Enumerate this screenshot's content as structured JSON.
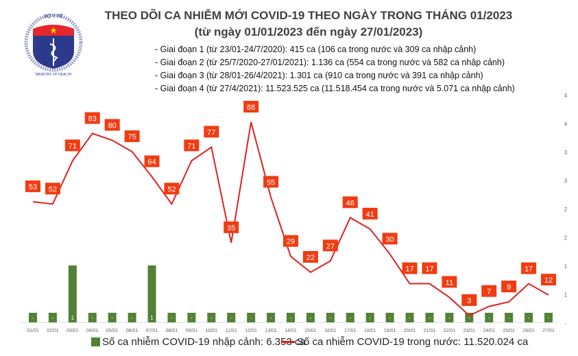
{
  "logo": {
    "top_text": "BỘ Y TẾ",
    "bottom_text": "MINISTRY OF HEALTH"
  },
  "header": {
    "title": "THEO DÕI CA NHIỄM MỚI COVID-19 THEO NGÀY TRONG THÁNG 01/2023",
    "subtitle": "(từ ngày 01/01/2023 đến ngày 27/01/2023)"
  },
  "phases": [
    "- Giai đoạn 1 (từ 23/01-24/7/2020): 415 ca (106 ca trong nước và 309 ca nhập cảnh)",
    "- Giai đoạn 2 (từ 25/7/2020-27/01/2021): 1.136 ca (554 ca trong nước và 582 ca nhập cảnh)",
    "- Giai đoạn 3 (từ 28/01-26/4/2021): 1.301 ca (910 ca trong nước và 391 ca nhập cảnh)",
    "- Giai đoạn 4 (từ 27/4/2021): 11.523.525 ca (11.518.454 ca trong nước và 5.071 ca nhập cảnh)"
  ],
  "chart_data": {
    "type": "bar+line",
    "categories": [
      "01/01",
      "02/01",
      "03/01",
      "04/01",
      "05/01",
      "06/01",
      "07/01",
      "08/01",
      "09/01",
      "10/01",
      "11/01",
      "12/01",
      "13/01",
      "14/01",
      "15/01",
      "16/01",
      "17/01",
      "18/01",
      "19/01",
      "20/01",
      "21/01",
      "22/01",
      "23/01",
      "24/01",
      "25/01",
      "26/01",
      "27/01"
    ],
    "series": [
      {
        "name": "Số ca nhiễm COVID-19 nhập cảnh: 6.353 ca",
        "type": "bar",
        "axis": "right",
        "color": "#538135",
        "values": [
          0,
          0,
          1,
          0,
          0,
          0,
          1,
          0,
          0,
          0,
          0,
          0,
          0,
          0,
          0,
          0,
          0,
          0,
          0,
          0,
          0,
          0,
          0,
          0,
          0,
          0,
          0
        ]
      },
      {
        "name": "Số ca nhiễm COVID-19 trong nước: 11.520.024 ca",
        "type": "line",
        "axis": "left",
        "color": "#e02020",
        "values": [
          53,
          52,
          71,
          83,
          80,
          75,
          64,
          52,
          71,
          77,
          35,
          88,
          55,
          29,
          22,
          27,
          46,
          41,
          30,
          17,
          17,
          11,
          3,
          7,
          9,
          17,
          12
        ]
      }
    ],
    "right_axis_ticks": [
      "-",
      "1",
      "1",
      "2",
      "2",
      "3",
      "3",
      "4",
      "4"
    ],
    "zero_label": "-",
    "label_color": "#f03c12"
  }
}
